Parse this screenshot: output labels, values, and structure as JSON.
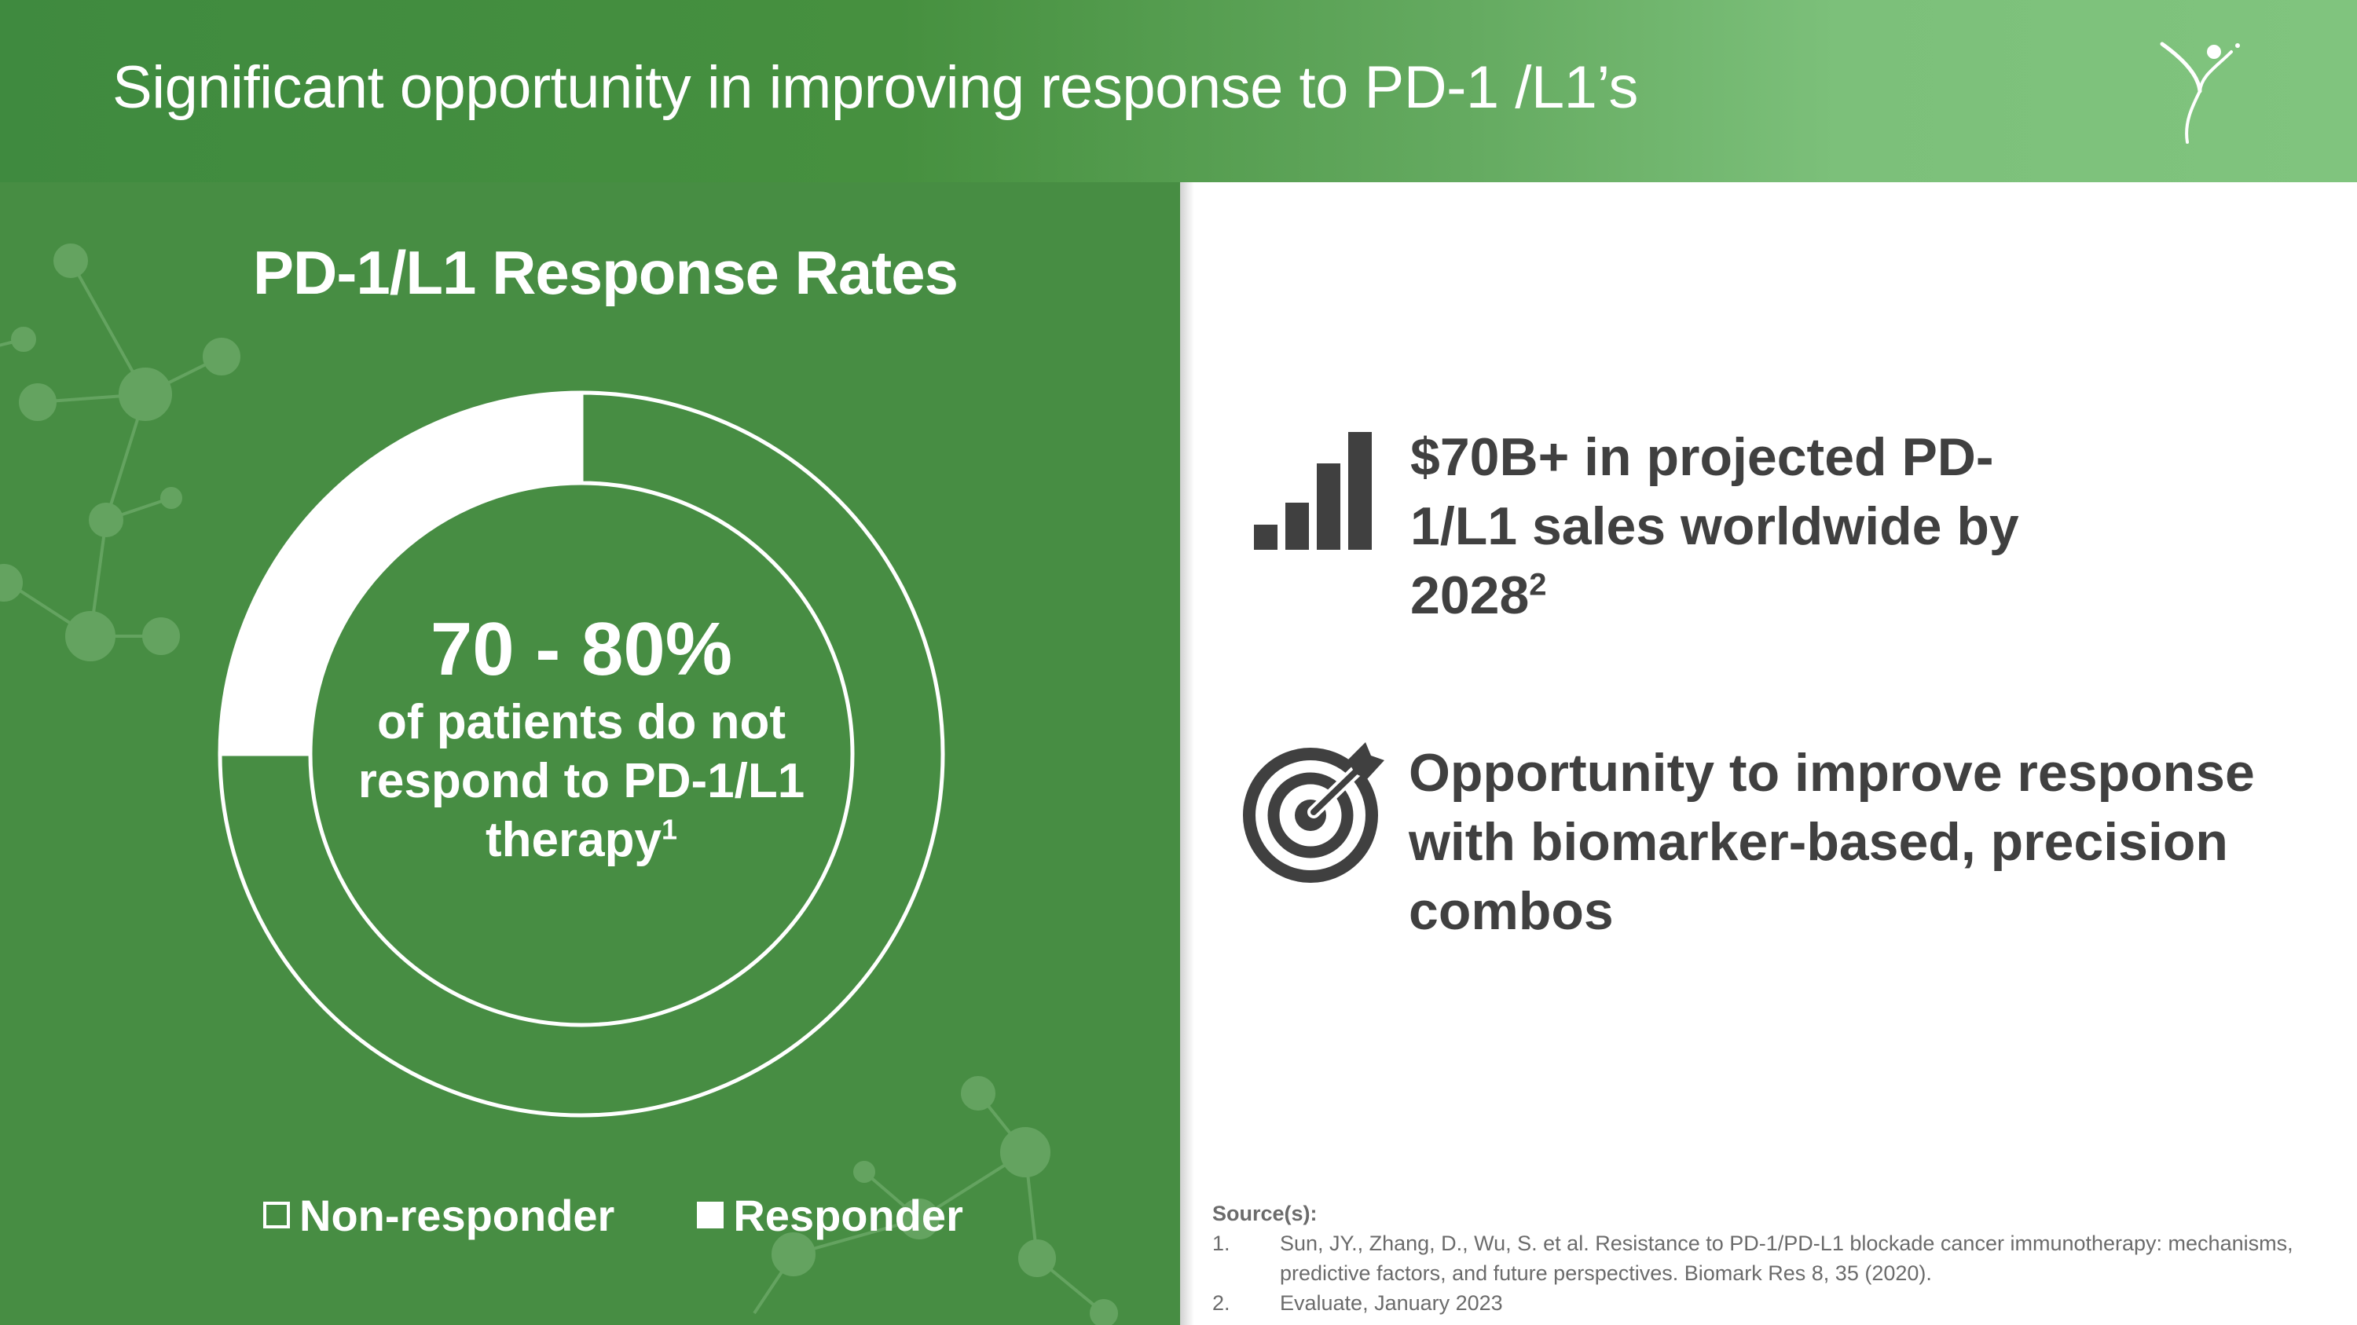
{
  "header": {
    "title": "Significant opportunity in improving response to PD-1 /L1’s",
    "logo_icon": "figure-logo-icon"
  },
  "colors": {
    "panel_green": "#478d43",
    "header_green_light": "#80c47e",
    "text_dark": "#404040",
    "white": "#ffffff"
  },
  "chart_data": {
    "type": "pie",
    "style": "donut",
    "title": "PD-1/L1 Response Rates",
    "series": [
      {
        "name": "Non-responder",
        "value": 75
      },
      {
        "name": "Responder",
        "value": 25
      }
    ],
    "center_value": "70 - 80%",
    "center_label": "of patients do not respond to PD-1/L1 therapy",
    "center_superscript": "1",
    "legend": [
      "Non-responder",
      "Responder"
    ],
    "legend_position": "bottom"
  },
  "stats": [
    {
      "icon": "bar-chart-icon",
      "text": "$70B+ in projected PD-1/L1 sales worldwide by 2028",
      "superscript": "2"
    },
    {
      "icon": "target-icon",
      "text": "Opportunity to improve response with biomarker-based, precision combos"
    }
  ],
  "sources": {
    "label": "Source(s):",
    "items": [
      {
        "num": "1.",
        "text": "Sun, JY., Zhang, D., Wu, S. et al. Resistance to PD-1/PD-L1 blockade cancer immunotherapy: mechanisms, predictive factors, and future perspectives. Biomark Res 8, 35 (2020)."
      },
      {
        "num": "2.",
        "text": "Evaluate, January 2023"
      }
    ]
  }
}
